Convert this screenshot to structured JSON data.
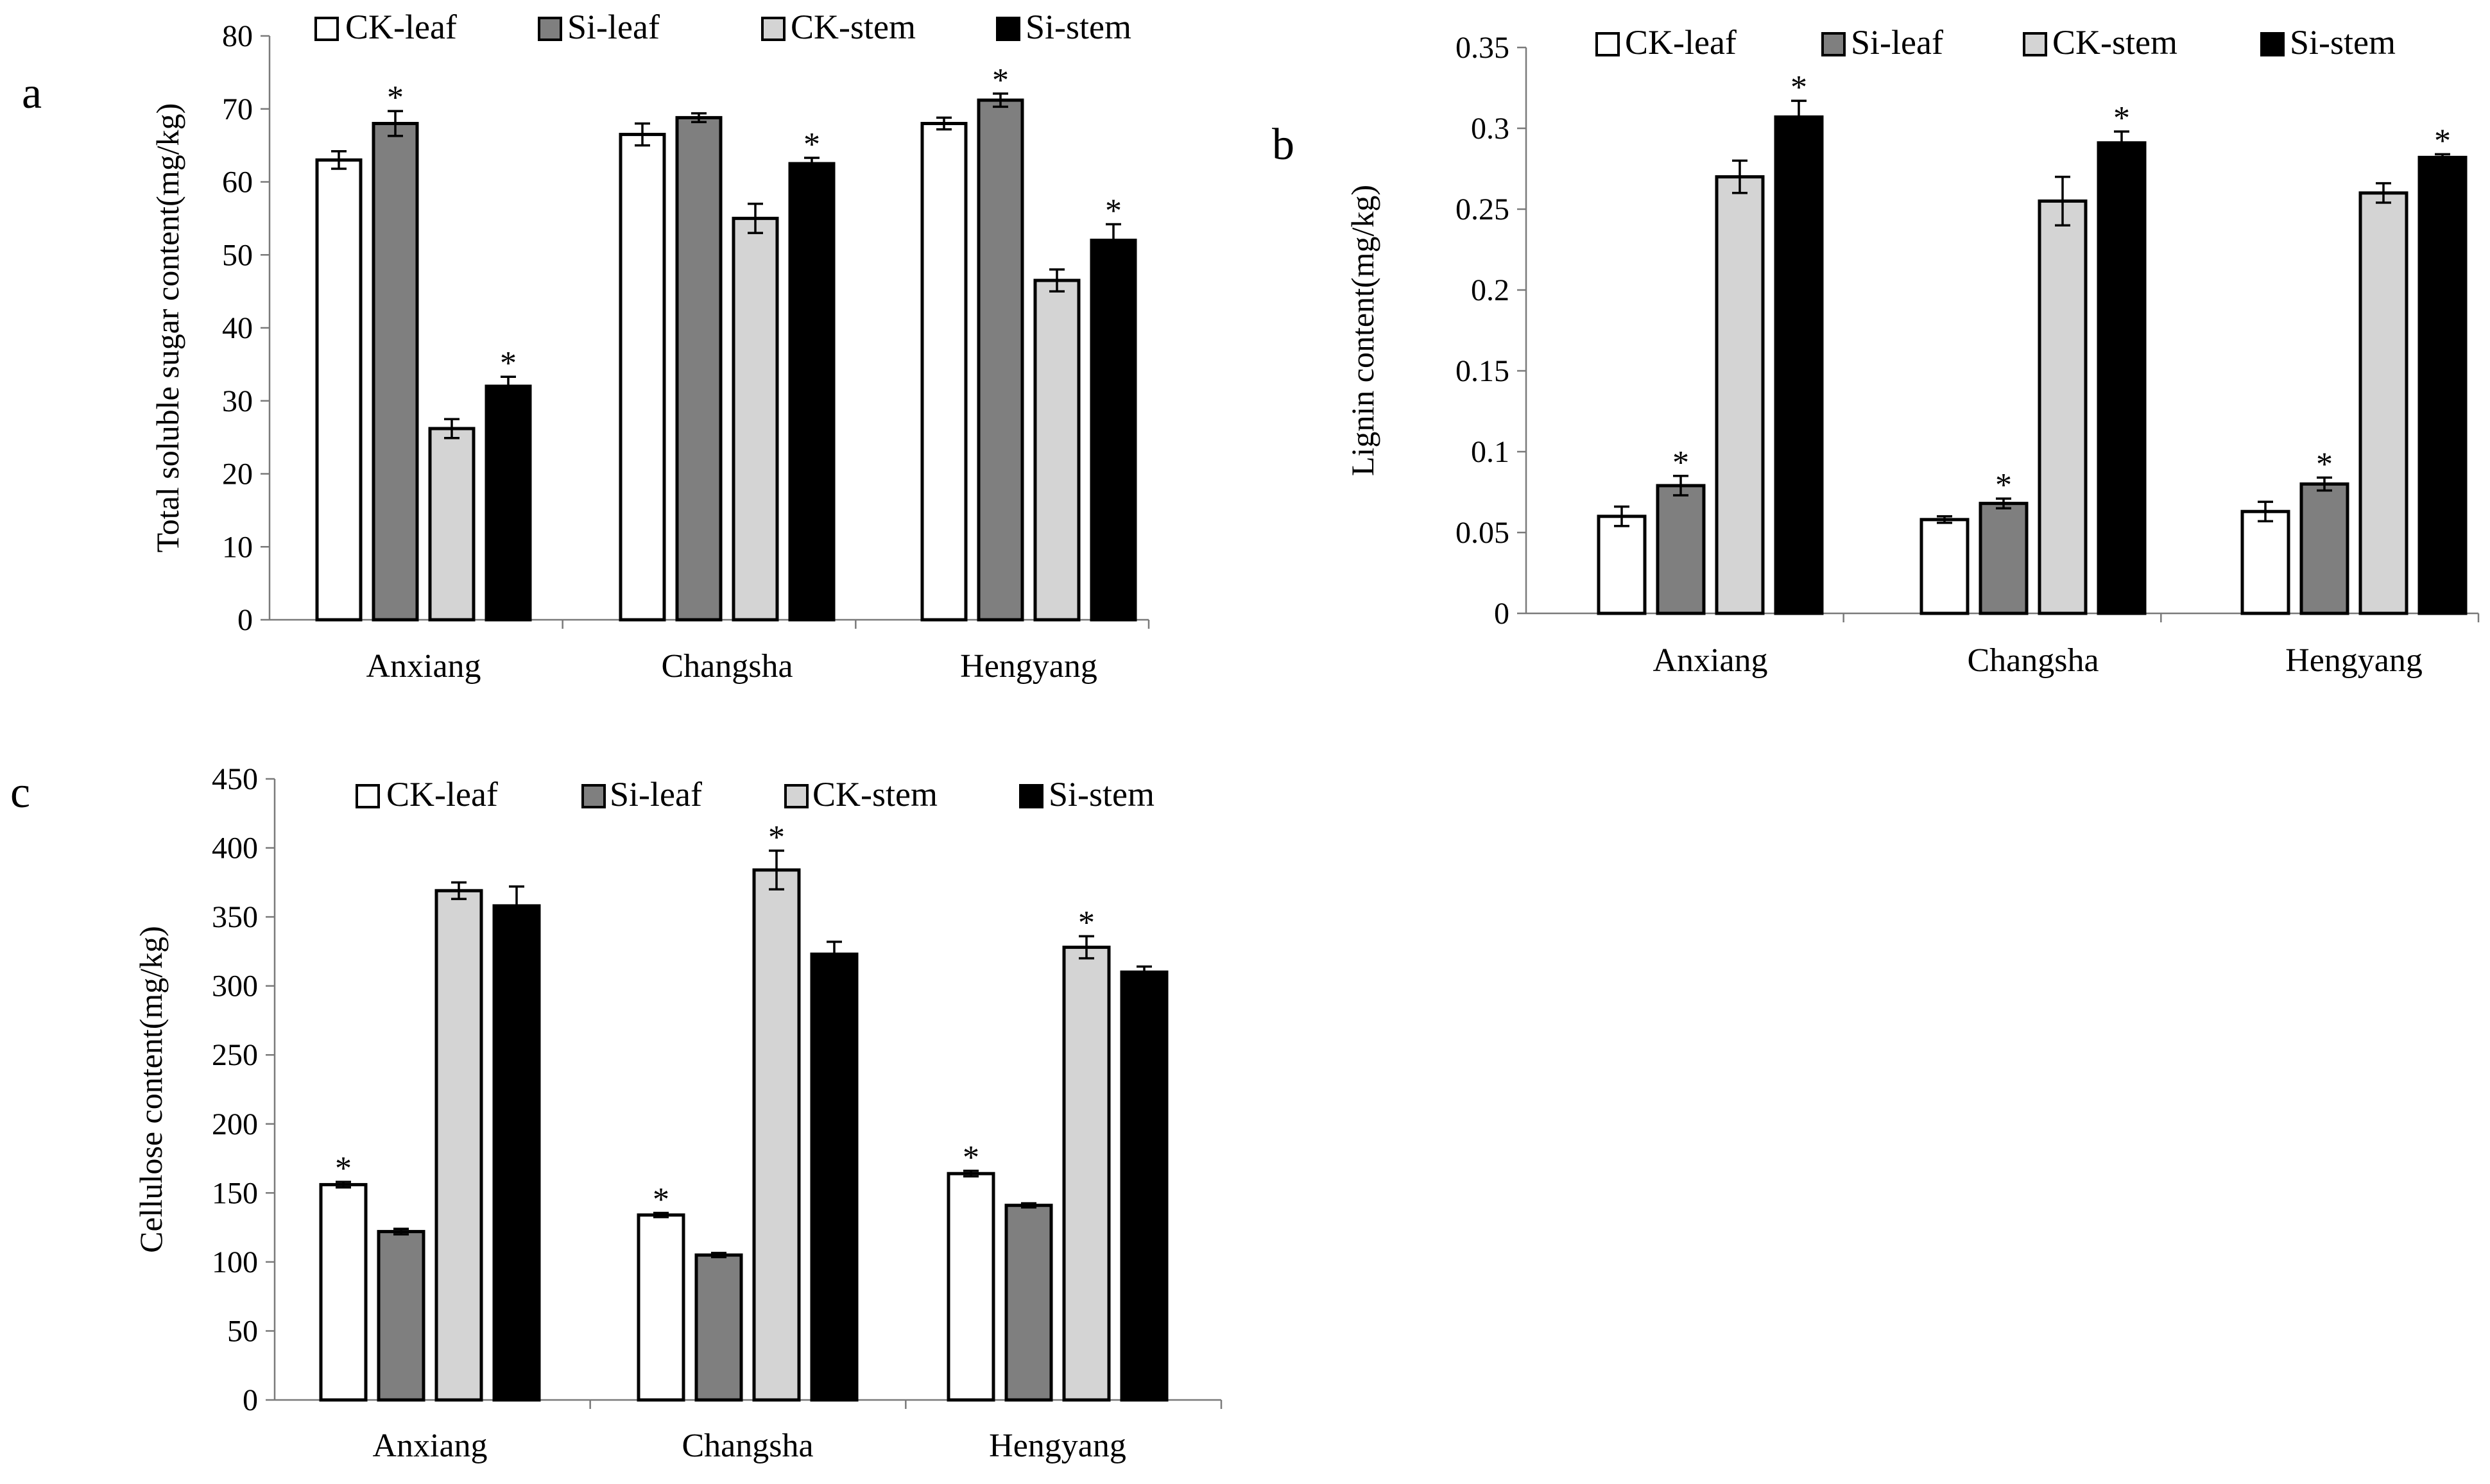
{
  "figure": {
    "series_styles": [
      {
        "name": "CK-leaf",
        "color": "#ffffff"
      },
      {
        "name": "Si-leaf",
        "color": "#7f7f7f"
      },
      {
        "name": "CK-stem",
        "color": "#d4d4d4"
      },
      {
        "name": "Si-stem",
        "color": "#000000"
      }
    ]
  },
  "chart_data": [
    {
      "panel": "a",
      "type": "bar",
      "title": "",
      "xlabel": "",
      "ylabel": "Total soluble sugar content(mg/kg)",
      "ylim": [
        0,
        80
      ],
      "yticks": [
        "0",
        "10",
        "20",
        "30",
        "40",
        "50",
        "60",
        "70",
        "80"
      ],
      "legend_position": "top",
      "categories": [
        "Anxiang",
        "Changsha",
        "Hengyang"
      ],
      "series": [
        {
          "name": "CK-leaf",
          "values": [
            63,
            66.5,
            68
          ],
          "errors": [
            1.2,
            1.5,
            0.8
          ],
          "sig": [
            false,
            false,
            false
          ]
        },
        {
          "name": "Si-leaf",
          "values": [
            68,
            68.8,
            71.2
          ],
          "errors": [
            1.7,
            0.6,
            0.9
          ],
          "sig": [
            true,
            false,
            true
          ]
        },
        {
          "name": "CK-stem",
          "values": [
            26.2,
            55,
            46.5
          ],
          "errors": [
            1.3,
            2.0,
            1.5
          ],
          "sig": [
            false,
            false,
            false
          ]
        },
        {
          "name": "Si-stem",
          "values": [
            32,
            62.5,
            52
          ],
          "errors": [
            1.3,
            0.8,
            2.2
          ],
          "sig": [
            true,
            true,
            true
          ]
        }
      ],
      "significance_marker": "*"
    },
    {
      "panel": "b",
      "type": "bar",
      "title": "",
      "xlabel": "",
      "ylabel": "Lignin content(mg/kg)",
      "ylim": [
        0,
        0.35
      ],
      "yticks": [
        "0",
        "0.05",
        "0.1",
        "0.15",
        "0.2",
        "0.25",
        "0.3",
        "0.35"
      ],
      "legend_position": "top",
      "categories": [
        "Anxiang",
        "Changsha",
        "Hengyang"
      ],
      "series": [
        {
          "name": "CK-leaf",
          "values": [
            0.06,
            0.058,
            0.063
          ],
          "errors": [
            0.006,
            0.002,
            0.006
          ],
          "sig": [
            false,
            false,
            false
          ]
        },
        {
          "name": "Si-leaf",
          "values": [
            0.079,
            0.068,
            0.08
          ],
          "errors": [
            0.006,
            0.003,
            0.004
          ],
          "sig": [
            true,
            true,
            true
          ]
        },
        {
          "name": "CK-stem",
          "values": [
            0.27,
            0.255,
            0.26
          ],
          "errors": [
            0.01,
            0.015,
            0.006
          ],
          "sig": [
            false,
            false,
            false
          ]
        },
        {
          "name": "Si-stem",
          "values": [
            0.307,
            0.291,
            0.282
          ],
          "errors": [
            0.01,
            0.007,
            0.002
          ],
          "sig": [
            true,
            true,
            true
          ]
        }
      ],
      "significance_marker": "*"
    },
    {
      "panel": "c",
      "type": "bar",
      "title": "",
      "xlabel": "",
      "ylabel": "Cellulose content(mg/kg)",
      "ylim": [
        0,
        450
      ],
      "yticks": [
        "0",
        "50",
        "100",
        "150",
        "200",
        "250",
        "300",
        "350",
        "400",
        "450"
      ],
      "legend_position": "top",
      "categories": [
        "Anxiang",
        "Changsha",
        "Hengyang"
      ],
      "series": [
        {
          "name": "CK-leaf",
          "values": [
            156,
            134,
            164
          ],
          "errors": [
            2,
            1.5,
            2
          ],
          "sig": [
            true,
            true,
            true
          ]
        },
        {
          "name": "Si-leaf",
          "values": [
            122,
            105,
            141
          ],
          "errors": [
            2,
            1.5,
            1.5
          ],
          "sig": [
            false,
            false,
            false
          ]
        },
        {
          "name": "CK-stem",
          "values": [
            369,
            384,
            328
          ],
          "errors": [
            6,
            14,
            8
          ],
          "sig": [
            false,
            true,
            true
          ]
        },
        {
          "name": "Si-stem",
          "values": [
            358,
            323,
            310
          ],
          "errors": [
            14,
            9,
            4
          ],
          "sig": [
            false,
            false,
            false
          ]
        }
      ],
      "significance_marker": "*"
    }
  ]
}
